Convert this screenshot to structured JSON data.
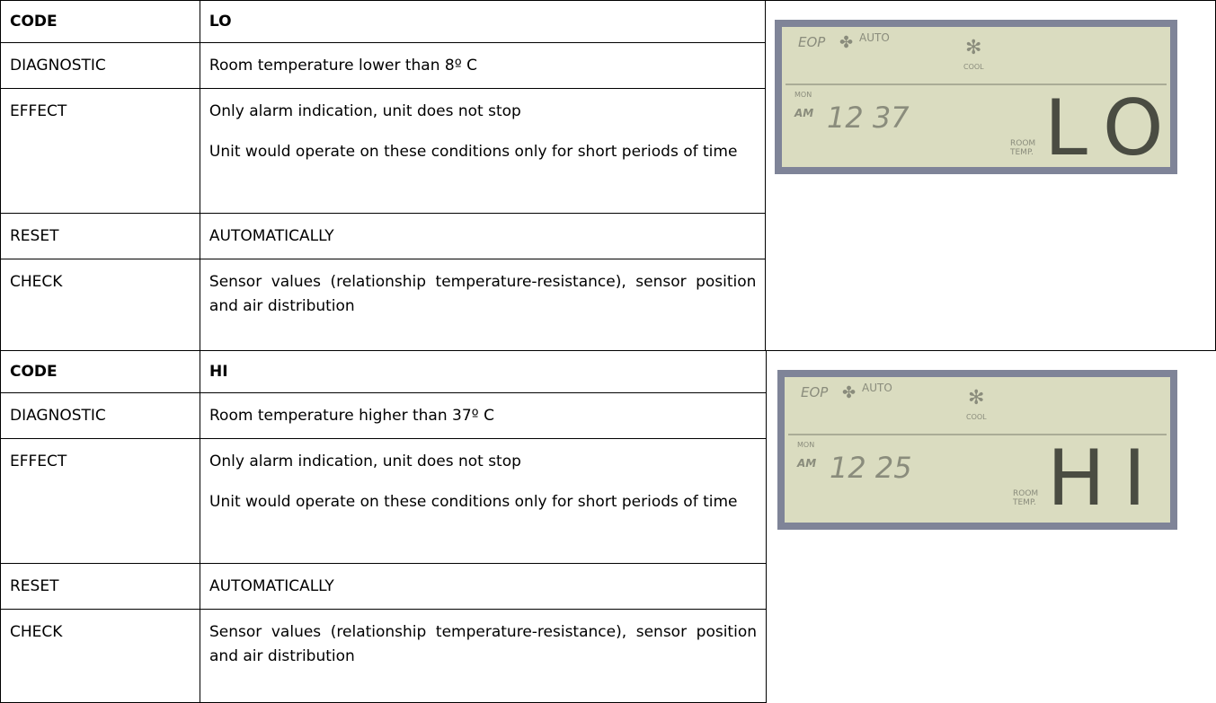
{
  "blocks": [
    {
      "rows": [
        {
          "label": "CODE",
          "text": [
            "LO"
          ]
        },
        {
          "label": "DIAGNOSTIC",
          "text": [
            "Room temperature lower than 8º C"
          ]
        },
        {
          "label": "EFFECT",
          "text": [
            "Only alarm indication, unit does not stop",
            "Unit would operate on these conditions only for short periods of time"
          ]
        },
        {
          "label": "RESET",
          "text": [
            "AUTOMATICALLY"
          ]
        },
        {
          "label": "CHECK",
          "text": [
            "Sensor values (relationship temperature-resistance), sensor position and air distribution"
          ]
        }
      ],
      "display": {
        "mode": "EOP",
        "fan": "AUTO",
        "cool": "COOL",
        "day": "MON",
        "ampm": "AM",
        "time": "12 37",
        "room": "ROOM",
        "temp": "TEMP.",
        "code": "LO"
      }
    },
    {
      "rows": [
        {
          "label": "CODE",
          "text": [
            "HI"
          ]
        },
        {
          "label": "DIAGNOSTIC",
          "text": [
            "Room temperature higher than 37º C"
          ]
        },
        {
          "label": "EFFECT",
          "text": [
            "Only alarm indication, unit does not stop",
            "Unit would operate on these conditions only for short periods of time"
          ]
        },
        {
          "label": "RESET",
          "text": [
            "AUTOMATICALLY"
          ]
        },
        {
          "label": "CHECK",
          "text": [
            "Sensor values (relationship temperature-resistance), sensor position and air distribution"
          ]
        }
      ],
      "display": {
        "mode": "EOP",
        "fan": "AUTO",
        "cool": "COOL",
        "day": "MON",
        "ampm": "AM",
        "time": "12 25",
        "room": "ROOM",
        "temp": "TEMP.",
        "code": "HI"
      }
    }
  ]
}
